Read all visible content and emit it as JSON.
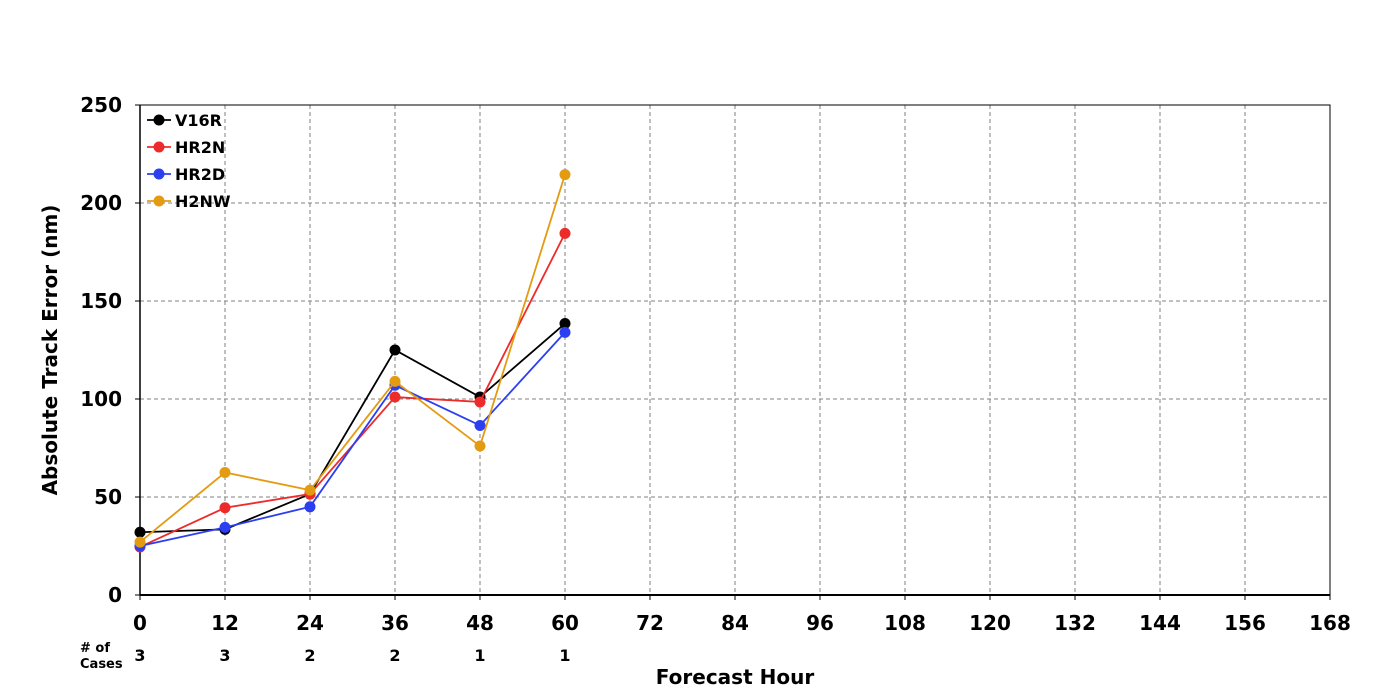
{
  "chart_data": {
    "type": "line",
    "xlabel": "Forecast Hour",
    "ylabel": "Absolute Track Error (nm)",
    "xlim": [
      0,
      168
    ],
    "ylim": [
      0,
      250
    ],
    "xticks": [
      0,
      12,
      24,
      36,
      48,
      60,
      72,
      84,
      96,
      108,
      120,
      132,
      144,
      156,
      168
    ],
    "yticks": [
      0,
      50,
      100,
      150,
      200,
      250
    ],
    "grid": true,
    "legend_position": "top-left",
    "series": [
      {
        "name": "V16R",
        "color": "#000000",
        "x": [
          0,
          12,
          24,
          36,
          48,
          60
        ],
        "values": [
          32,
          33.5,
          51.5,
          125,
          101,
          138.5
        ]
      },
      {
        "name": "HR2N",
        "color": "#ee2b2b",
        "x": [
          0,
          12,
          24,
          36,
          48,
          60
        ],
        "values": [
          24.5,
          44.5,
          51.5,
          101,
          98.5,
          184.5
        ]
      },
      {
        "name": "HR2D",
        "color": "#2b3ff0",
        "x": [
          0,
          12,
          24,
          36,
          48,
          60
        ],
        "values": [
          25,
          34.5,
          45,
          107,
          86.5,
          134
        ]
      },
      {
        "name": "H2NW",
        "color": "#e39b12",
        "x": [
          0,
          12,
          24,
          36,
          48,
          60
        ],
        "values": [
          27,
          62.5,
          53.5,
          109,
          76,
          214.5
        ]
      }
    ],
    "cases": {
      "label_line1": "# of",
      "label_line2": "Cases",
      "x": [
        0,
        12,
        24,
        36,
        48,
        60
      ],
      "values": [
        "3",
        "3",
        "2",
        "2",
        "1",
        "1"
      ]
    }
  }
}
